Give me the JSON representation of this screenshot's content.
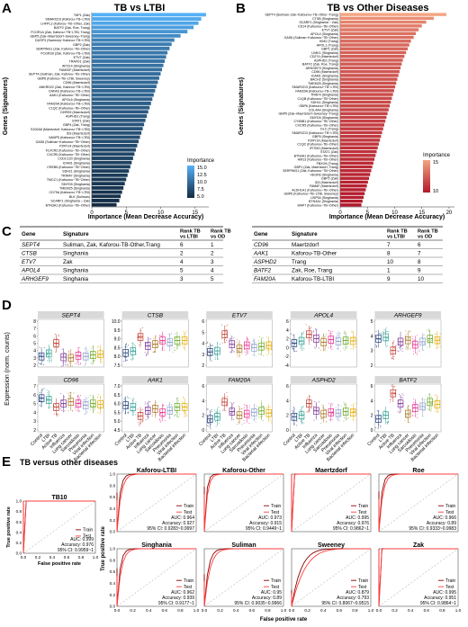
{
  "panels": {
    "A": {
      "letter": "A",
      "title": "TB vs LTBI",
      "ylabel": "Genes (Signatures)",
      "xlabel": "Importance (Mean Decrease Accuracy)",
      "legend_title": "Importance",
      "legend_ticks": [
        "15.0",
        "12.5",
        "10.0",
        "7.5",
        "5.0"
      ],
      "xticks": [
        "0",
        "5",
        "10",
        "15"
      ],
      "xmax": 17,
      "gradient": [
        "#132b43",
        "#56b1f7"
      ],
      "genes": [
        {
          "label": "TAP1 (Zak)",
          "v": 16.6
        },
        {
          "label": "SMARCD3 (Kaforou~TB~LTBI)",
          "v": 15.9
        },
        {
          "label": "LHFPL2 (Kaforou~TB~Other, Zak)",
          "v": 15.5
        },
        {
          "label": "BATF2 (Zak, Roe, Trang)",
          "v": 14.8
        },
        {
          "label": "FCGR1A (Zak, Kaforou~TB~LTBI, Trang)",
          "v": 13.9
        },
        {
          "label": "GBP5 (Zak~Maertzdorf~Sweeney~Trang)",
          "v": 12.9
        },
        {
          "label": "DUSP3 (Sweeney~Kaforou~TB~LTBI)",
          "v": 12.0
        },
        {
          "label": "GBP2 (Zak)",
          "v": 11.6
        },
        {
          "label": "SERPING1 (Zak, Kaforou~TB~Other)",
          "v": 11.3
        },
        {
          "label": "FCGR1B (Zak, Kaforou~TB~LTBI)",
          "v": 11.0
        },
        {
          "label": "ETV7 (Zak)",
          "v": 10.8
        },
        {
          "label": "TRAFD1 (Zak)",
          "v": 10.6
        },
        {
          "label": "APOL4 (Singhania)",
          "v": 10.4
        },
        {
          "label": "FAM20F (Maertzdorf)",
          "v": 10.2
        },
        {
          "label": "SEPT4 (Suliman, Zak, Kaforou~TB~Other)",
          "v": 10.0
        },
        {
          "label": "GBP6 (Kaforou~TB~LTBI, Sweeney)",
          "v": 9.8
        },
        {
          "label": "CD96 (Maertzdorf)",
          "v": 9.6
        },
        {
          "label": "ANKRD22 (Zak, Kaforou~TB~LTBI)",
          "v": 9.4
        },
        {
          "label": "CNFAS (Kafourou~TB~LTBI)",
          "v": 9.2
        },
        {
          "label": "AAK1 (Kafourou~TB~Other)",
          "v": 9.0
        },
        {
          "label": "APOL6 (Singhania)",
          "v": 8.8
        },
        {
          "label": "FAM20A (Kafourou~TB~LTBI)",
          "v": 8.6
        },
        {
          "label": "C1QC (Kafourou~TB~Other)",
          "v": 8.4
        },
        {
          "label": "DHRS9 (Maertzdorf)",
          "v": 8.2
        },
        {
          "label": "ASPHD2 (Trang)",
          "v": 8.0
        },
        {
          "label": "STAT1 (Zak)",
          "v": 7.8
        },
        {
          "label": "GBP4 (Zak, Trang)",
          "v": 7.6
        },
        {
          "label": "S100A8 (Maertzdorf, Kafourou~TB~LTBI)",
          "v": 7.4
        },
        {
          "label": "ID3 (Maertzdorf)",
          "v": 7.2
        },
        {
          "label": "VAMP5 (Kafourou~TB~LTBI)",
          "v": 7.0
        },
        {
          "label": "GAS6 (Suliman~Kafourou~TB~Other)",
          "v": 6.8
        },
        {
          "label": "P2RY14 (Maertzdorf)",
          "v": 6.6
        },
        {
          "label": "FLVCR2 (Kafourou~TB~Other)",
          "v": 6.4
        },
        {
          "label": "CXCR5 (Kafourou~TB~Other)",
          "v": 6.2
        },
        {
          "label": "CCDC120 (Singhania)",
          "v": 6.0
        },
        {
          "label": "ICAM1 (Singhania)",
          "v": 5.8
        },
        {
          "label": "CREB5 (Kafourou~TB~Other)",
          "v": 5.6
        },
        {
          "label": "SDH11 (Singhania)",
          "v": 5.4
        },
        {
          "label": "TRIM47 (Singhania)",
          "v": 5.2
        },
        {
          "label": "TMCC1 (Kafourou~TB~Other)",
          "v": 5.0
        },
        {
          "label": "SMYD5 (Singhania)",
          "v": 4.8
        },
        {
          "label": "TMEM25 (Singhania)",
          "v": 4.6
        },
        {
          "label": "CD79A (Kafourou~TB~LTBI)",
          "v": 4.4
        },
        {
          "label": "BLK (Suliman)",
          "v": 4.2
        },
        {
          "label": "SCARF1 (Singhania ~ Zak)",
          "v": 4.0
        },
        {
          "label": "BTN3A1 (Kafourou~TB~Other)",
          "v": 3.6
        }
      ]
    },
    "B": {
      "letter": "B",
      "title": "TB vs Other Diseases",
      "ylabel": "Genes (Signatures)",
      "xlabel": "Importance (Mean Decrease Accuracy)",
      "legend_title": "Importance",
      "legend_ticks": [
        "15",
        "10"
      ],
      "xticks": [
        "0",
        "5",
        "10",
        "15",
        "20"
      ],
      "xmax": 21,
      "gradient": [
        "#b2182b",
        "#f4a582"
      ],
      "genes": [
        {
          "label": "SEPT4 (Suliman~Zak~Kafourou~TB~Other~Trang)",
          "v": 19.5
        },
        {
          "label": "CTSB (Singhania)",
          "v": 17.2
        },
        {
          "label": "SCARF1 (Singhania ~ Zak)",
          "v": 15.8
        },
        {
          "label": "CD14 (Kafourou~TB~Other)",
          "v": 15.0
        },
        {
          "label": "ETV7 (Zak)",
          "v": 14.4
        },
        {
          "label": "APOL4 (Singhania)",
          "v": 13.9
        },
        {
          "label": "GAS6 (Suliman~Kafourou~TB~Other)",
          "v": 13.5
        },
        {
          "label": "KIM2 (Trang)",
          "v": 13.0
        },
        {
          "label": "APOL1 (Trang)",
          "v": 12.7
        },
        {
          "label": "GBP1 (Zak)",
          "v": 12.4
        },
        {
          "label": "LIMK1 (Singhania)",
          "v": 12.1
        },
        {
          "label": "CD274 (Maertzdorf)",
          "v": 11.8
        },
        {
          "label": "ASPHD2 (Trang)",
          "v": 11.5
        },
        {
          "label": "BATF2 (Zak, Roe, Trang)",
          "v": 11.3
        },
        {
          "label": "ARHGEF9 (Singhania)",
          "v": 11.1
        },
        {
          "label": "CD96 (Maertzdorf)",
          "v": 10.9
        },
        {
          "label": "ICAM1 (Singhania)",
          "v": 10.7
        },
        {
          "label": "BACH2 (Singhania)",
          "v": 10.5
        },
        {
          "label": "TMEM25 (Singhania)",
          "v": 10.3
        },
        {
          "label": "SMARCD3 (Kafourou~TB~LTBI)",
          "v": 10.1
        },
        {
          "label": "FAM20A (Kafourou~TB~LTBI)",
          "v": 9.9
        },
        {
          "label": "TRAF4 (Singhania)",
          "v": 9.7
        },
        {
          "label": "C1QB (Kafourou~TB~Other)",
          "v": 9.5
        },
        {
          "label": "SDH11 (Singhania)",
          "v": 9.3
        },
        {
          "label": "GBP6 (Kafourou~TB~LTBI)",
          "v": 9.1
        },
        {
          "label": "COL4A4 (Singhania)",
          "v": 8.9
        },
        {
          "label": "GBP5 (Zak~Maertzdorf~Sweeney~Trang)",
          "v": 8.7
        },
        {
          "label": "SMYD5 (Singhania)",
          "v": 8.5
        },
        {
          "label": "CYB5B1 (Kafourou~TB~Other)",
          "v": 8.3
        },
        {
          "label": "CXCR5 (Kafourou~TB~Other)",
          "v": 8.1
        },
        {
          "label": "DLC (Trang)",
          "v": 7.9
        },
        {
          "label": "SMARCD3 (Kafourou~TB~LTBI)",
          "v": 7.7
        },
        {
          "label": "GBP5 (Singhania)",
          "v": 7.5
        },
        {
          "label": "P2RY14 (Maertzdorf)",
          "v": 7.3
        },
        {
          "label": "C1QC (Kafourou~TB~Other)",
          "v": 7.1
        },
        {
          "label": "IFITM3 (Maertzdorf)",
          "v": 6.9
        },
        {
          "label": "STAT1 (Zak)",
          "v": 6.7
        },
        {
          "label": "BTN3A1 (Kafourou~TB~Other)",
          "v": 6.5
        },
        {
          "label": "HM13 (Kafourou~TB~Other)",
          "v": 6.3
        },
        {
          "label": "FBXO6 (Trang)",
          "v": 6.1
        },
        {
          "label": "GBP1 (Zak, Maertzdorf, Trang)",
          "v": 5.9
        },
        {
          "label": "SERPING1 (Zak, Kafourou~TB~Other)",
          "v": 5.7
        },
        {
          "label": "VEGFB (Singhania)",
          "v": 5.5
        },
        {
          "label": "GBP2 (Zak)",
          "v": 5.3
        },
        {
          "label": "ID3 (Maertzdorf)",
          "v": 5.1
        },
        {
          "label": "FAM6F (Maertzdorf)",
          "v": 4.9
        },
        {
          "label": "ALDH1A1 (Kafourou~TB~Other)",
          "v": 4.7
        },
        {
          "label": "GBP6 (Kafourou~TB~LTBI, Sweeney)",
          "v": 4.5
        },
        {
          "label": "USP54 (Singhania)",
          "v": 4.3
        },
        {
          "label": "BTN3A1 (Singhania)",
          "v": 4.1
        },
        {
          "label": "MAP7 (Kafourou~TB~Other)",
          "v": 3.9
        }
      ]
    }
  },
  "table_C": {
    "letter": "C",
    "headers": [
      "Gene",
      "Signature",
      "Rank TB vs LTBI",
      "Rank TB vs OD"
    ],
    "left_rows": [
      [
        "SEPT4",
        "Suliman, Zak, Kaforou-TB-Other,Trang",
        "6",
        "1"
      ],
      [
        "CTSB",
        "Singhania",
        "2",
        "2"
      ],
      [
        "ETV7",
        "Zak",
        "4",
        "3"
      ],
      [
        "APOL4",
        "Singhania",
        "5",
        "4"
      ],
      [
        "ARHGEF9",
        "Singhania",
        "3",
        "5"
      ]
    ],
    "right_rows": [
      [
        "CD96",
        "Maertzdorf",
        "7",
        "6"
      ],
      [
        "AAK1",
        "Kaforou-TB-Other",
        "8",
        "7"
      ],
      [
        "ASPHD2",
        "Trang",
        "10",
        "8"
      ],
      [
        "BATF2",
        "Zak, Roe, Trang",
        "1",
        "9"
      ],
      [
        "FAM20A",
        "Kaforou-TB-LTBI",
        "9",
        "10"
      ]
    ]
  },
  "panel_D": {
    "letter": "D",
    "ylabel": "Expression (norm. counts)",
    "groups": [
      "Control",
      "LTBI",
      "Active TB",
      "Influenza",
      "Lung cancer",
      "Sarcoidosis",
      "Pneumonia",
      "Viral infection",
      "Bacterial infection"
    ],
    "group_colors": [
      "#1f3d7a",
      "#2a9d8f",
      "#c0392b",
      "#7b3294",
      "#a6761d",
      "#e7298a",
      "#8da0cb",
      "#66a61e",
      "#e6ab02"
    ],
    "genes": [
      {
        "name": "SEPT4",
        "yticks": [
          "8",
          "7",
          "6",
          "5",
          "4",
          "3",
          "2"
        ],
        "medians": [
          3.2,
          3.6,
          5.0,
          3.1,
          3.0,
          3.3,
          3.2,
          3.4,
          3.5
        ]
      },
      {
        "name": "CTSB",
        "yticks": [
          "10.0",
          "9.5",
          "9.0",
          "8.5",
          "8.0",
          "7.5"
        ],
        "medians": [
          8.2,
          8.3,
          9.1,
          8.6,
          8.7,
          8.9,
          8.8,
          8.9,
          8.9
        ]
      },
      {
        "name": "ETV7",
        "yticks": [
          "6",
          "5",
          "4",
          "3",
          "2"
        ],
        "medians": [
          3.2,
          3.3,
          4.8,
          3.9,
          3.5,
          3.8,
          3.6,
          3.7,
          3.8
        ]
      },
      {
        "name": "APOL4",
        "yticks": [
          "6",
          "4",
          "2",
          "0",
          "-2",
          "-4"
        ],
        "medians": [
          1.0,
          1.5,
          3.0,
          2.0,
          1.2,
          1.8,
          1.4,
          1.6,
          1.5
        ]
      },
      {
        "name": "ARHGEF9",
        "yticks": [
          "5",
          "4",
          "3",
          "2"
        ],
        "medians": [
          3.8,
          3.9,
          3.0,
          3.6,
          3.7,
          3.4,
          3.6,
          3.8,
          3.7
        ]
      },
      {
        "name": "CD96",
        "yticks": [
          "7",
          "6",
          "5",
          "4",
          "3",
          "2"
        ],
        "medians": [
          5.6,
          5.4,
          4.6,
          5.0,
          5.2,
          5.0,
          4.8,
          5.0,
          4.9
        ]
      },
      {
        "name": "AAK1",
        "yticks": [
          "7.0",
          "6.5",
          "6.0",
          "5.5",
          "5.0",
          "4.5"
        ],
        "medians": [
          5.9,
          5.8,
          5.3,
          5.6,
          5.7,
          5.5,
          5.6,
          5.8,
          5.8
        ]
      },
      {
        "name": "FAM20A",
        "yticks": [
          "6",
          "4",
          "2",
          "0"
        ],
        "medians": [
          1.5,
          1.8,
          3.8,
          2.5,
          2.0,
          2.2,
          2.4,
          2.6,
          2.3
        ]
      },
      {
        "name": "ASPHD2",
        "yticks": [
          "6",
          "4",
          "2",
          "0"
        ],
        "medians": [
          1.8,
          2.0,
          3.6,
          2.6,
          2.2,
          2.4,
          2.3,
          2.5,
          2.4
        ]
      },
      {
        "name": "BATF2",
        "yticks": [
          "6",
          "4",
          "2",
          "0"
        ],
        "medians": [
          1.5,
          2.0,
          5.0,
          3.6,
          2.2,
          3.0,
          3.2,
          3.8,
          3.5
        ]
      }
    ]
  },
  "panel_E": {
    "letter": "E",
    "title": "TB versus other diseases",
    "ylabel": "True positive rate",
    "xlabel": "False positive rate",
    "ticks": [
      "0.0",
      "0.2",
      "0.4",
      "0.6",
      "0.8",
      "1.0"
    ],
    "legend": [
      "Train",
      "Test"
    ],
    "colors": {
      "train": "#8b0000",
      "test": "#ff3b3b"
    },
    "plots": [
      {
        "name": "TB10",
        "auc": "AUC: 0.999",
        "acc": "Accuracy: 0.976",
        "ci": "95% CI: 0.9959~1"
      },
      {
        "name": "Kaforou-LTBI",
        "auc": "AUC: 0.964",
        "acc": "Accuracy: 0.927",
        "ci": "95% CI: 0.9283~0.9997"
      },
      {
        "name": "Kaforou-Other",
        "auc": "AUC: 0.973",
        "acc": "Accuracy: 0.915",
        "ci": "95% CI: 0.9449~1"
      },
      {
        "name": "Maertzdorf",
        "auc": "AUC: 0.995",
        "acc": "Accuracy: 0.976",
        "ci": "95% CI: 0.9862~1"
      },
      {
        "name": "Roe",
        "auc": "AUC: 0.966",
        "acc": "Accuracy: 0.89",
        "ci": "95% CI: 0.9333~0.9983"
      },
      {
        "name": "Singhania",
        "auc": "AUC: 0.962",
        "acc": "Accuracy: 0.939",
        "ci": "95% CI: 0.9177~1"
      },
      {
        "name": "Suliman",
        "auc": "AUC: 0.95",
        "acc": "Accuracy: 0.89",
        "ci": "95% CI: 0.9035~0.9966"
      },
      {
        "name": "Sweeney",
        "auc": "AUC: 0.879",
        "acc": "Accuracy: 0.793",
        "ci": "95% CI: 0.8067~0.9515"
      },
      {
        "name": "Zak",
        "auc": "AUC: 0.995",
        "acc": "Accuracy: 0.951",
        "ci": "95% CI: 0.9864~1"
      }
    ]
  }
}
